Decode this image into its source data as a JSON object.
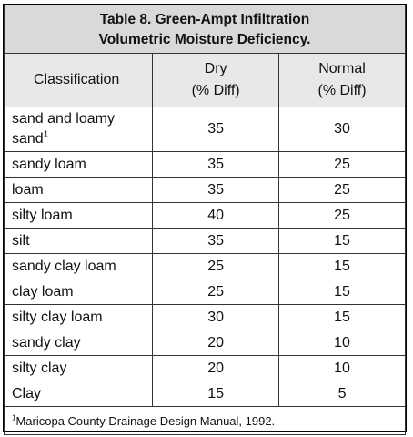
{
  "title_line1": "Table 8.  Green-Ampt Infiltration",
  "title_line2": "Volumetric Moisture Deficiency.",
  "headers": {
    "classification": "Classification",
    "dry": "Dry",
    "dry_unit": "(% Diff)",
    "normal": "Normal",
    "normal_unit": "(% Diff)"
  },
  "rows": [
    {
      "name": "sand and loamy",
      "name2": "sand",
      "sup": "1",
      "dry": "35",
      "normal": "30"
    },
    {
      "name": "sandy loam",
      "dry": "35",
      "normal": "25"
    },
    {
      "name": "loam",
      "dry": "35",
      "normal": "25"
    },
    {
      "name": "silty loam",
      "dry": "40",
      "normal": "25"
    },
    {
      "name": "silt",
      "dry": "35",
      "normal": "15"
    },
    {
      "name": "sandy clay loam",
      "dry": "25",
      "normal": "15"
    },
    {
      "name": "clay loam",
      "dry": "25",
      "normal": "15"
    },
    {
      "name": "silty clay loam",
      "dry": "30",
      "normal": "15"
    },
    {
      "name": "sandy clay",
      "dry": "20",
      "normal": "10"
    },
    {
      "name": "silty clay",
      "dry": "20",
      "normal": "10"
    },
    {
      "name": "Clay",
      "dry": "15",
      "normal": "5"
    }
  ],
  "footnote": {
    "marker": "1",
    "text": "Maricopa County Drainage Design Manual, 1992."
  }
}
